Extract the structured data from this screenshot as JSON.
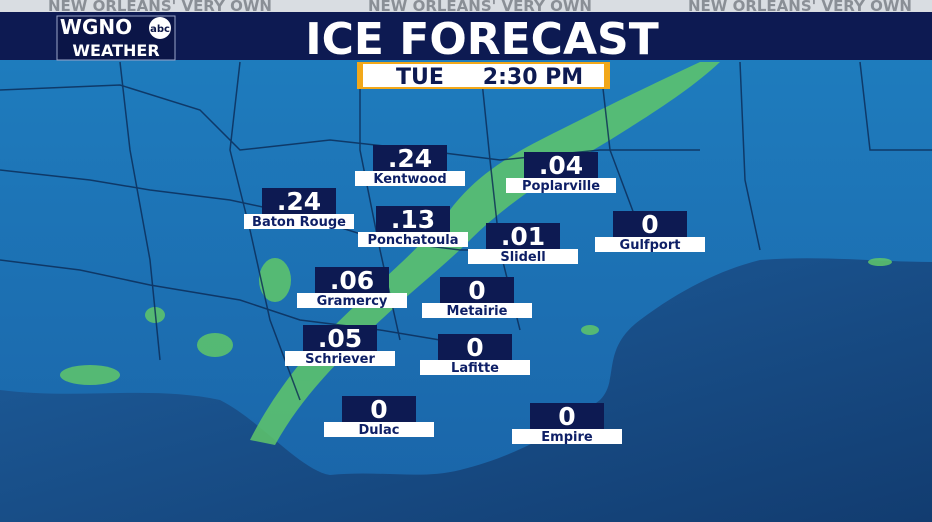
{
  "header": {
    "tagline": [
      "NEW ORLEANS' VERY OWN",
      "NEW ORLEANS' VERY OWN",
      "NEW ORLEANS' VERY OWN"
    ],
    "logo": {
      "station": "WGNO",
      "network": "abc",
      "sub": "WEATHER"
    },
    "title": "ICE FORECAST",
    "time": {
      "day": "TUE",
      "clock": "2:30 PM"
    }
  },
  "cities": [
    {
      "name": "Kentwood",
      "amount": ".24"
    },
    {
      "name": "Poplarville",
      "amount": ".04"
    },
    {
      "name": "Baton Rouge",
      "amount": ".24"
    },
    {
      "name": "Ponchatoula",
      "amount": ".13"
    },
    {
      "name": "Gulfport",
      "amount": "0"
    },
    {
      "name": "Slidell",
      "amount": ".01"
    },
    {
      "name": "Gramercy",
      "amount": ".06"
    },
    {
      "name": "Metairie",
      "amount": "0"
    },
    {
      "name": "Schriever",
      "amount": ".05"
    },
    {
      "name": "Lafitte",
      "amount": "0"
    },
    {
      "name": "Dulac",
      "amount": "0"
    },
    {
      "name": "Empire",
      "amount": "0"
    }
  ]
}
